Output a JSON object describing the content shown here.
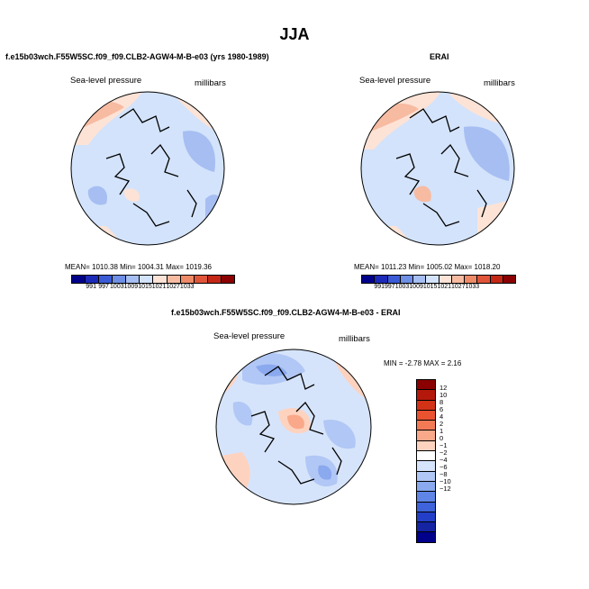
{
  "title": "JJA",
  "panels": {
    "model": {
      "caption": "f.e15b03wch.F55W5SC.f09_f09.CLB2-AGW4-M-B-e03 (yrs 1980-1989)",
      "field": "Sea-level pressure",
      "units": "millibars",
      "stats": "MEAN= 1010.38     Min= 1004.31     Max= 1019.36"
    },
    "obs": {
      "caption": "ERAI",
      "field": "Sea-level pressure",
      "units": "millibars",
      "stats": "MEAN= 1011.23     Min= 1005.02     Max= 1018.20"
    },
    "diff": {
      "caption": "f.e15b03wch.F55W5SC.f09_f09.CLB2-AGW4-M-B-e03 - ERAI",
      "field": "Sea-level pressure",
      "units": "millibars",
      "stats": "MIN =   -2.78 MAX =    2.16"
    }
  },
  "colorbar_abs": {
    "colors": [
      "#00008b",
      "#1c2ab8",
      "#3b5bd6",
      "#6f8fe6",
      "#a6bef2",
      "#d3e3fb",
      "#fde3d6",
      "#f7bba2",
      "#ee8a68",
      "#e0553a",
      "#c42716",
      "#8b0000"
    ],
    "ticks": [
      "991",
      "997",
      "1003",
      "1009",
      "1015",
      "1021",
      "1027",
      "1033"
    ]
  },
  "colorbar_diff": {
    "colors": [
      "#8b0000",
      "#b4180b",
      "#d23215",
      "#ea5230",
      "#f47a56",
      "#f9a889",
      "#fdd3c0",
      "#ffffff",
      "#d6e4fb",
      "#b1c7f5",
      "#8aa9ee",
      "#5f86e6",
      "#3e63da",
      "#233fc7",
      "#1424a3",
      "#00008b"
    ],
    "ticks": [
      "12",
      "10",
      "8",
      "6",
      "4",
      "2",
      "1",
      "0",
      "−1",
      "−2",
      "−4",
      "−6",
      "−8",
      "−10",
      "−12"
    ]
  },
  "map_colors": {
    "abs_base": "#d3e3fb",
    "abs_low": "#a6bef2",
    "abs_high": "#fde3d6",
    "abs_higher": "#f7bba2",
    "diff_base": "#d6e4fb",
    "diff_low": "#b1c7f5",
    "diff_lower": "#8aa9ee",
    "diff_high": "#fdd3c0",
    "diff_higher": "#f9a889"
  }
}
